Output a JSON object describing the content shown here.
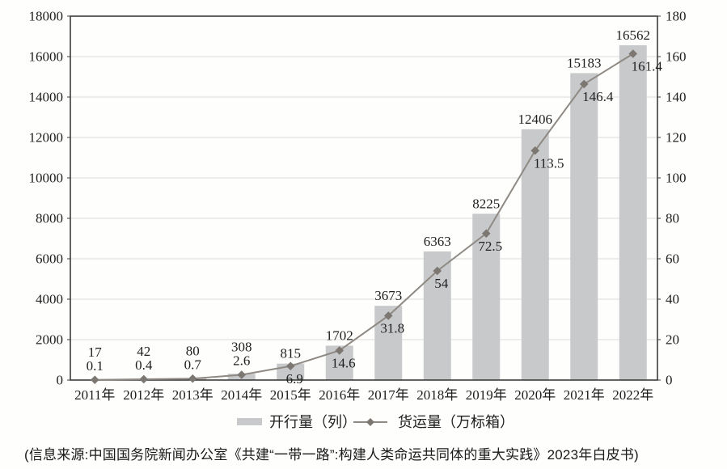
{
  "source_note": "(信息来源:中国国务院新闻办公室《共建“一带一路”:构建人类命运共同体的重大实践》2023年白皮书)",
  "chart_data": {
    "type": "bar",
    "subtype": "bar-line-combo",
    "title": "",
    "categories": [
      "2011年",
      "2012年",
      "2013年",
      "2014年",
      "2015年",
      "2016年",
      "2017年",
      "2018年",
      "2019年",
      "2020年",
      "2021年",
      "2022年"
    ],
    "series": [
      {
        "name": "开行量（列）",
        "type": "bar",
        "axis": "left",
        "values": [
          17,
          42,
          80,
          308,
          815,
          1702,
          3673,
          6363,
          8225,
          12406,
          15183,
          16562
        ],
        "labels": [
          "17",
          "42",
          "80",
          "308",
          "815",
          "1702",
          "3673",
          "6363",
          "8225",
          "12406",
          "15183",
          "16562"
        ]
      },
      {
        "name": "货运量（万标箱）",
        "type": "line",
        "axis": "right",
        "values": [
          0.1,
          0.4,
          0.7,
          2.6,
          6.9,
          14.6,
          31.8,
          54,
          72.5,
          113.5,
          146.4,
          161.4
        ],
        "labels": [
          "0.1",
          "0.4",
          "0.7",
          "2.6",
          "6.9",
          "14.6",
          "31.8",
          "54",
          "72.5",
          "113.5",
          "146.4",
          "161.4"
        ]
      }
    ],
    "left_axis": {
      "min": 0,
      "max": 18000,
      "step": 2000
    },
    "right_axis": {
      "min": 0,
      "max": 180,
      "step": 20
    },
    "grid": true,
    "data_labels": true,
    "legend_position": "bottom",
    "colors": {
      "bar": "#c7c9cb",
      "line": "#8f8983",
      "marker": "#7d7772",
      "grid": "#dcdcdc",
      "border": "#3c3c3c",
      "text": "#1f1f1f"
    }
  }
}
